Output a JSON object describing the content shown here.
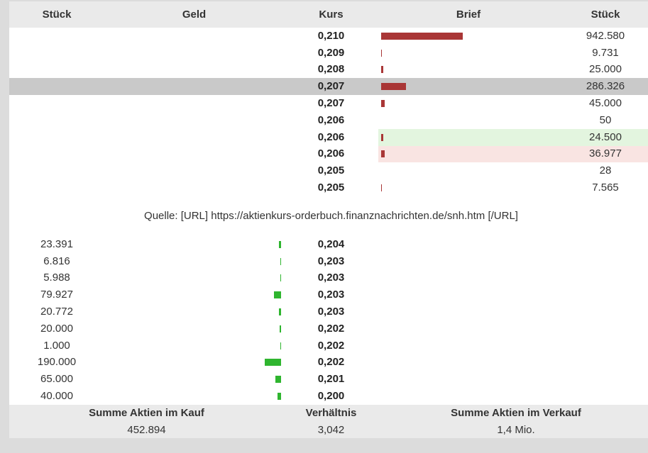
{
  "header": {
    "bid_volume": "Stück",
    "bid": "Geld",
    "price": "Kurs",
    "ask": "Brief",
    "ask_volume": "Stück"
  },
  "ask": [
    {
      "price": "0,210",
      "volume": "942.580"
    },
    {
      "price": "0,209",
      "volume": "9.731"
    },
    {
      "price": "0,208",
      "volume": "25.000"
    },
    {
      "price": "0,207",
      "volume": "286.326",
      "highlight": "gray"
    },
    {
      "price": "0,207",
      "volume": "45.000"
    },
    {
      "price": "0,206",
      "volume": "50"
    },
    {
      "price": "0,206",
      "volume": "24.500",
      "highlight": "green"
    },
    {
      "price": "0,206",
      "volume": "36.977",
      "highlight": "red"
    },
    {
      "price": "0,205",
      "volume": "28"
    },
    {
      "price": "0,205",
      "volume": "7.565"
    }
  ],
  "source": "Quelle: [URL] https://aktienkurs-orderbuch.finanznachrichten.de/snh.htm [/URL]",
  "bid": [
    {
      "volume": "23.391",
      "price": "0,204"
    },
    {
      "volume": "6.816",
      "price": "0,203"
    },
    {
      "volume": "5.988",
      "price": "0,203"
    },
    {
      "volume": "79.927",
      "price": "0,203"
    },
    {
      "volume": "20.772",
      "price": "0,203"
    },
    {
      "volume": "20.000",
      "price": "0,202"
    },
    {
      "volume": "1.000",
      "price": "0,202"
    },
    {
      "volume": "190.000",
      "price": "0,202"
    },
    {
      "volume": "65.000",
      "price": "0,201"
    },
    {
      "volume": "40.000",
      "price": "0,200"
    }
  ],
  "summary": {
    "buy_label": "Summe Aktien im Kauf",
    "ratio_label": "Verhältnis",
    "sell_label": "Summe Aktien im Verkauf",
    "buy_value": "452.894",
    "ratio_value": "3,042",
    "sell_value": "1,4 Mio."
  },
  "colors": {
    "ask_bar": "#a93636",
    "bid_bar": "#2fb52f",
    "highlight_gray": "#c9c9c9",
    "highlight_green": "#e3f5df",
    "highlight_red": "#f9e4e2",
    "header_background": "#eaeaea",
    "page_background": "#dcdcdc"
  }
}
